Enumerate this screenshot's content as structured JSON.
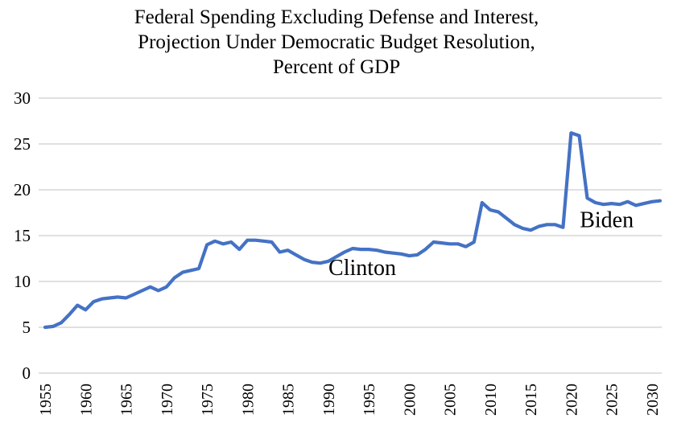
{
  "chart_data": {
    "type": "line",
    "title_lines": [
      "Federal Spending Excluding Defense and Interest,",
      "Projection Under Democratic Budget Resolution,",
      "Percent of GDP"
    ],
    "x": [
      1955,
      1956,
      1957,
      1958,
      1959,
      1960,
      1961,
      1962,
      1963,
      1964,
      1965,
      1966,
      1967,
      1968,
      1969,
      1970,
      1971,
      1972,
      1973,
      1974,
      1975,
      1976,
      1977,
      1978,
      1979,
      1980,
      1981,
      1982,
      1983,
      1984,
      1985,
      1986,
      1987,
      1988,
      1989,
      1990,
      1991,
      1992,
      1993,
      1994,
      1995,
      1996,
      1997,
      1998,
      1999,
      2000,
      2001,
      2002,
      2003,
      2004,
      2005,
      2006,
      2007,
      2008,
      2009,
      2010,
      2011,
      2012,
      2013,
      2014,
      2015,
      2016,
      2017,
      2018,
      2019,
      2020,
      2021,
      2022,
      2023,
      2024,
      2025,
      2026,
      2027,
      2028,
      2029,
      2030,
      2031
    ],
    "values": [
      5.0,
      5.1,
      5.5,
      6.4,
      7.4,
      6.9,
      7.8,
      8.1,
      8.2,
      8.3,
      8.2,
      8.6,
      9.0,
      9.4,
      9.0,
      9.4,
      10.4,
      11.0,
      11.2,
      11.4,
      14.0,
      14.4,
      14.1,
      14.3,
      13.5,
      14.5,
      14.5,
      14.4,
      14.3,
      13.2,
      13.4,
      12.9,
      12.4,
      12.1,
      12.0,
      12.2,
      12.7,
      13.2,
      13.6,
      13.5,
      13.5,
      13.4,
      13.2,
      13.1,
      13.0,
      12.8,
      12.9,
      13.5,
      14.3,
      14.2,
      14.1,
      14.1,
      13.8,
      14.3,
      18.6,
      17.8,
      17.6,
      16.9,
      16.2,
      15.8,
      15.6,
      16.0,
      16.2,
      16.2,
      15.9,
      26.2,
      25.9,
      19.1,
      18.6,
      18.4,
      18.5,
      18.4,
      18.7,
      18.3,
      18.5,
      18.7,
      18.8
    ],
    "ylabel": "",
    "xlabel": "",
    "ylim": [
      0,
      30
    ],
    "ytick_step": 5,
    "yticks": [
      0,
      5,
      10,
      15,
      20,
      25,
      30
    ],
    "xticks": [
      1955,
      1960,
      1965,
      1970,
      1975,
      1980,
      1985,
      1990,
      1995,
      2000,
      2005,
      2010,
      2015,
      2020,
      2025,
      2030
    ],
    "grid": true,
    "legend": "none",
    "annotations": [
      {
        "text": "Clinton",
        "year": 1994.2,
        "value": 11.6
      },
      {
        "text": "Biden",
        "year": 2024.4,
        "value": 16.8
      }
    ],
    "colors": {
      "line": "#4472C4",
      "gridline": "#D6D6D6",
      "text": "#000000",
      "background": "#FFFFFF"
    }
  }
}
